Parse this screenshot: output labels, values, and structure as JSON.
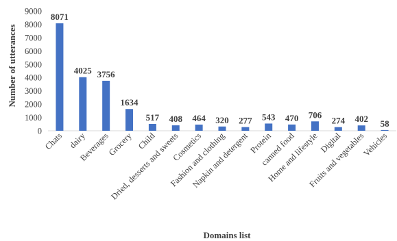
{
  "chart_data": {
    "type": "bar",
    "title": "",
    "xlabel": "Domains list",
    "ylabel": "Number of utterances",
    "ylim": [
      0,
      9000
    ],
    "yticks": [
      0,
      1000,
      2000,
      3000,
      4000,
      5000,
      6000,
      7000,
      8000,
      9000
    ],
    "grid": false,
    "legend": "none",
    "bar_color": "#4472C4",
    "categories": [
      "Chats",
      "dairy",
      "Beverages",
      "Grocery",
      "Child",
      "Dried, desserts and sweets",
      "Cosmetics",
      "Fashion and clothing",
      "Napkin and detergent",
      "Protein",
      "canned food",
      "Home and lifestyle",
      "Digital",
      "Fruits and vegetables",
      "Vehicles"
    ],
    "values": [
      8071,
      4025,
      3756,
      1634,
      517,
      408,
      464,
      320,
      277,
      543,
      470,
      706,
      274,
      402,
      58
    ]
  }
}
